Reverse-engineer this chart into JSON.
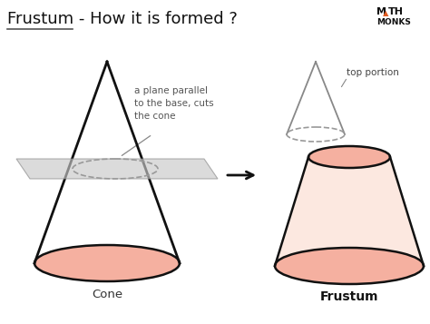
{
  "title": "Frustum - How it is formed ?",
  "title_fontsize": 13,
  "background_color": "#ffffff",
  "cone_color": "#f5b0a0",
  "cone_line_color": "#111111",
  "plane_color": "#c8c8c8",
  "plane_alpha": 0.65,
  "frustum_color": "#f5b0a0",
  "frustum_body_color": "#fce8e0",
  "dashed_color": "#999999",
  "arrow_color": "#111111",
  "label_cone": "Cone",
  "label_frustum": "Frustum",
  "label_top": "top portion",
  "label_plane": "a plane parallel\nto the base, cuts\nthe cone",
  "logo_color": "#e05a20"
}
